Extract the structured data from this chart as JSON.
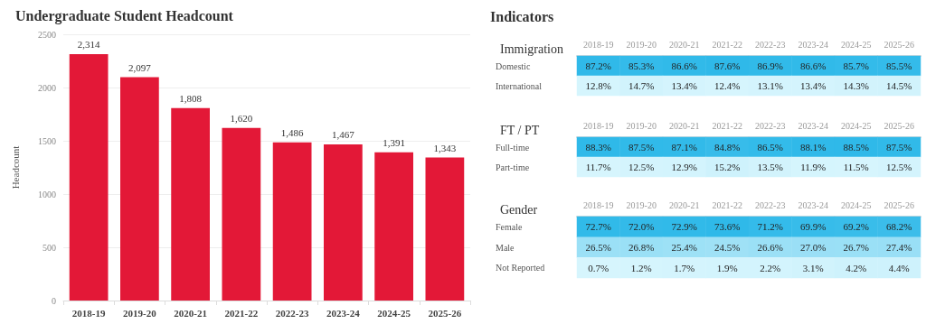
{
  "chart_data": [
    {
      "type": "bar",
      "title": "Undergraduate Student Headcount",
      "ylabel": "Headcount",
      "categories": [
        "2018-19",
        "2019-20",
        "2020-21",
        "2021-22",
        "2022-23",
        "2023-24",
        "2024-25",
        "2025-26"
      ],
      "values": [
        2314,
        2097,
        1808,
        1620,
        1486,
        1467,
        1391,
        1343
      ],
      "color": "#e31837",
      "ylim": [
        0,
        2500
      ],
      "yticks": [
        0,
        500,
        1000,
        1500,
        2000,
        2500
      ],
      "grid": "y",
      "value_labels": [
        "2,314",
        "2,097",
        "1,808",
        "1,620",
        "1,486",
        "1,467",
        "1,391",
        "1,343"
      ]
    },
    {
      "type": "other",
      "title": "Indicators"
    },
    {
      "type": "heatmap",
      "title": "Immigration",
      "categories": [
        "2018-19",
        "2019-20",
        "2020-21",
        "2021-22",
        "2022-23",
        "2023-24",
        "2024-25",
        "2025-26"
      ],
      "y_categories": [
        "Domestic",
        "International"
      ],
      "cells": [
        [
          87.2,
          85.3,
          86.6,
          87.6,
          86.9,
          86.6,
          85.7,
          85.5
        ],
        [
          12.8,
          14.7,
          13.4,
          12.4,
          13.1,
          13.4,
          14.3,
          14.5
        ]
      ],
      "cell_labels": [
        [
          "87.2%",
          "85.3%",
          "86.6%",
          "87.6%",
          "86.9%",
          "86.6%",
          "85.7%",
          "85.5%"
        ],
        [
          "12.8%",
          "14.7%",
          "13.4%",
          "12.4%",
          "13.1%",
          "13.4%",
          "14.3%",
          "14.5%"
        ]
      ]
    },
    {
      "type": "heatmap",
      "title": "FT / PT",
      "categories": [
        "2018-19",
        "2019-20",
        "2020-21",
        "2021-22",
        "2022-23",
        "2023-24",
        "2024-25",
        "2025-26"
      ],
      "y_categories": [
        "Full-time",
        "Part-time"
      ],
      "cells": [
        [
          88.3,
          87.5,
          87.1,
          84.8,
          86.5,
          88.1,
          88.5,
          87.5
        ],
        [
          11.7,
          12.5,
          12.9,
          15.2,
          13.5,
          11.9,
          11.5,
          12.5
        ]
      ],
      "cell_labels": [
        [
          "88.3%",
          "87.5%",
          "87.1%",
          "84.8%",
          "86.5%",
          "88.1%",
          "88.5%",
          "87.5%"
        ],
        [
          "11.7%",
          "12.5%",
          "12.9%",
          "15.2%",
          "13.5%",
          "11.9%",
          "11.5%",
          "12.5%"
        ]
      ]
    },
    {
      "type": "heatmap",
      "title": "Gender",
      "categories": [
        "2018-19",
        "2019-20",
        "2020-21",
        "2021-22",
        "2022-23",
        "2023-24",
        "2024-25",
        "2025-26"
      ],
      "y_categories": [
        "Female",
        "Male",
        "Not Reported"
      ],
      "cells": [
        [
          72.7,
          72.0,
          72.9,
          73.6,
          71.2,
          69.9,
          69.2,
          68.2
        ],
        [
          26.5,
          26.8,
          25.4,
          24.5,
          26.6,
          27.0,
          26.7,
          27.4
        ],
        [
          0.7,
          1.2,
          1.7,
          1.9,
          2.2,
          3.1,
          4.2,
          4.4
        ]
      ],
      "cell_labels": [
        [
          "72.7%",
          "72.0%",
          "72.9%",
          "73.6%",
          "71.2%",
          "69.9%",
          "69.2%",
          "68.2%"
        ],
        [
          "26.5%",
          "26.8%",
          "25.4%",
          "24.5%",
          "26.6%",
          "27.0%",
          "26.7%",
          "27.4%"
        ],
        [
          "0.7%",
          "1.2%",
          "1.7%",
          "1.9%",
          "2.2%",
          "3.1%",
          "4.2%",
          "4.4%"
        ]
      ]
    }
  ]
}
